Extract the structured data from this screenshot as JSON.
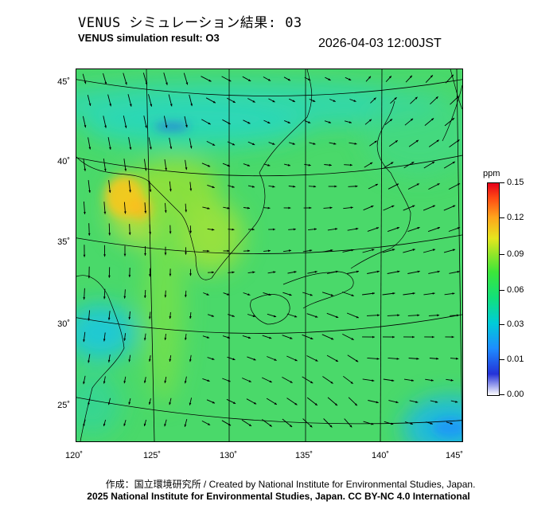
{
  "header": {
    "title_jp": "VENUS シミュレーション結果: 03",
    "title_en": "VENUS simulation result: O3",
    "timestamp": "2026-04-03 12:00JST"
  },
  "map": {
    "latitude_labels": [
      "45˚",
      "40˚",
      "35˚",
      "30˚",
      "25˚"
    ],
    "longitude_labels": [
      "120˚",
      "125˚",
      "130˚",
      "135˚",
      "140˚",
      "145˚"
    ],
    "lat_range": [
      23,
      46
    ],
    "lon_range": [
      120,
      145.5
    ],
    "background_color": "#4ad96a"
  },
  "colorbar": {
    "title": "ppm",
    "ticks": [
      "0.15",
      "0.12",
      "0.09",
      "0.06",
      "0.03",
      "0.01",
      "0.00"
    ],
    "colors": [
      "#ffffff",
      "#2432d8",
      "#1e8cff",
      "#00ccd8",
      "#12e07a",
      "#3ce63a",
      "#8de62a",
      "#e6e61e",
      "#ffa41c",
      "#ff4a14",
      "#e6001a"
    ]
  },
  "credits": {
    "line1": "作成：国立環境研究所 / Created by National Institute for Environmental Studies, Japan.",
    "line2": "2025 National Institute for Environmental Studies, Japan. CC BY-NC 4.0 International"
  }
}
